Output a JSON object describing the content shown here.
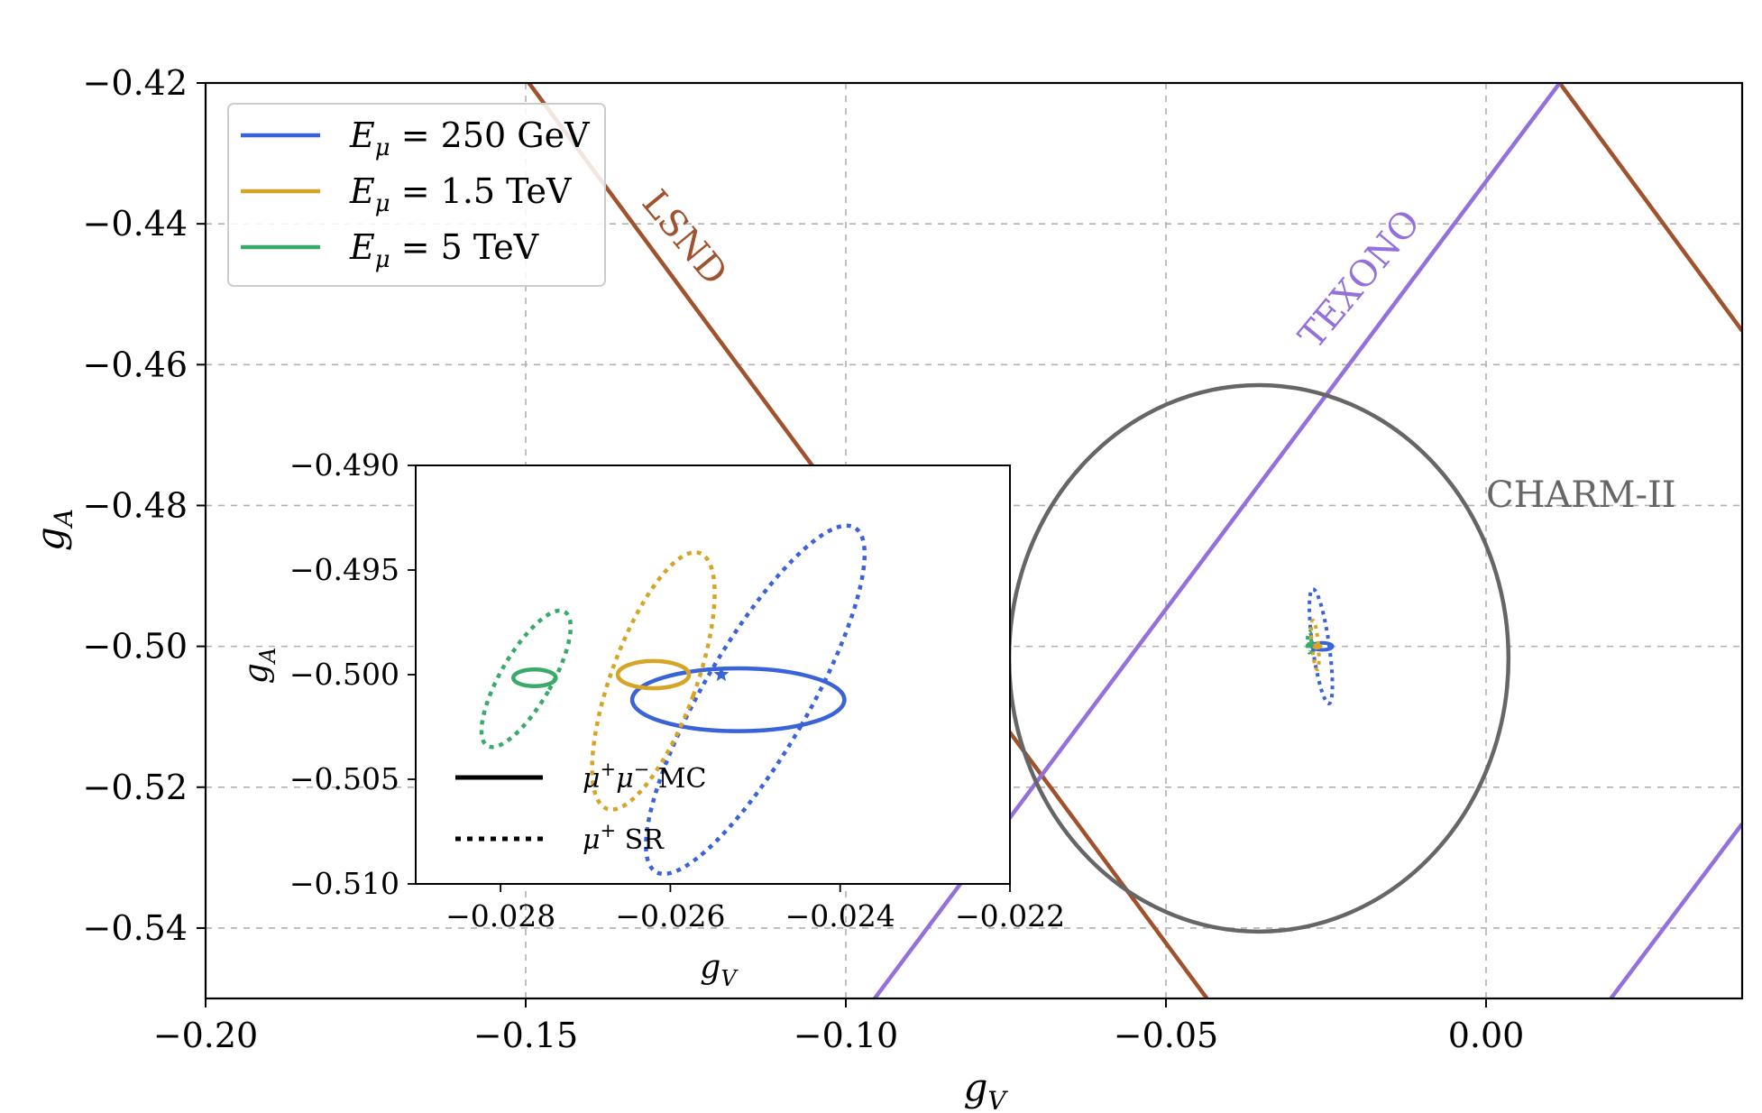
{
  "colors": {
    "e250": "#3a62d9",
    "e1500": "#d6a526",
    "e5000": "#3aaa6a",
    "lsnd": "#a0522d",
    "texono": "#9370db",
    "charm": "#666666"
  },
  "chart_data": {
    "type": "line",
    "main": {
      "xlabel": "g_V",
      "ylabel": "g_A",
      "xlim": [
        -0.2,
        0.04
      ],
      "ylim": [
        -0.55,
        -0.42
      ],
      "xticks": [
        -0.2,
        -0.15,
        -0.1,
        -0.05,
        0.0
      ],
      "xtick_labels": [
        "−0.20",
        "−0.15",
        "−0.10",
        "−0.05",
        "0.00"
      ],
      "yticks": [
        -0.42,
        -0.44,
        -0.46,
        -0.48,
        -0.5,
        -0.52,
        -0.54
      ],
      "ytick_labels": [
        "−0.42",
        "−0.44",
        "−0.46",
        "−0.48",
        "−0.50",
        "−0.52",
        "−0.54"
      ],
      "grid": true,
      "legend_position": "top-left",
      "legend": [
        {
          "key": "e250",
          "label": "E_μ = 250 GeV",
          "sym": "E",
          "sub": "μ",
          "rest": " = 250 GeV"
        },
        {
          "key": "e1500",
          "label": "E_μ = 1.5 TeV",
          "sym": "E",
          "sub": "μ",
          "rest": " = 1.5 TeV"
        },
        {
          "key": "e5000",
          "label": "E_μ = 5 TeV",
          "sym": "E",
          "sub": "μ",
          "rest": " = 5 TeV"
        }
      ],
      "annotations": {
        "lsnd": "LSND",
        "texono": "TEXONO",
        "charm": "CHARM-II"
      },
      "lsnd_lines": [
        {
          "x": [
            -0.1495,
            -0.0436
          ],
          "y": [
            -0.42,
            -0.55
          ]
        },
        {
          "x": [
            0.0115,
            0.04
          ],
          "y": [
            -0.42,
            -0.4552
          ]
        }
      ],
      "texono_lines": [
        {
          "x": [
            -0.0955,
            0.0115
          ],
          "y": [
            -0.55,
            -0.42
          ]
        },
        {
          "x": [
            0.0195,
            0.04
          ],
          "y": [
            -0.55,
            -0.5252
          ]
        }
      ],
      "charm_ellipse": {
        "cx": -0.0355,
        "cy": -0.5017,
        "rx": 0.039,
        "ry": 0.0388
      },
      "contours": [
        {
          "key": "e250",
          "style": "solid",
          "cx": -0.0256,
          "cy": -0.5,
          "rx": 0.0016,
          "ry": 0.0005,
          "angle": 0
        },
        {
          "key": "e250",
          "style": "dotted",
          "cx": -0.0258,
          "cy": -0.5,
          "rx": 0.0013,
          "ry": 0.0082,
          "angle": -8
        },
        {
          "key": "e1500",
          "style": "solid",
          "cx": -0.0264,
          "cy": -0.5,
          "rx": 0.0005,
          "ry": 0.0002,
          "angle": 0
        },
        {
          "key": "e1500",
          "style": "dotted",
          "cx": -0.0267,
          "cy": -0.4998,
          "rx": 0.0005,
          "ry": 0.0035,
          "angle": -5
        },
        {
          "key": "e5000",
          "style": "solid",
          "cx": -0.0275,
          "cy": -0.4998,
          "rx": 0.0003,
          "ry": 0.0002,
          "angle": 0
        },
        {
          "key": "e5000",
          "style": "dotted",
          "cx": -0.0276,
          "cy": -0.4994,
          "rx": 0.0003,
          "ry": 0.0015,
          "angle": 0
        }
      ]
    },
    "inset": {
      "xlabel": "g_V",
      "ylabel": "g_A",
      "xlim": [
        -0.029,
        -0.022
      ],
      "ylim": [
        -0.51,
        -0.49
      ],
      "xticks": [
        -0.028,
        -0.026,
        -0.024,
        -0.022
      ],
      "xtick_labels": [
        "−0.028",
        "−0.026",
        "−0.024",
        "−0.022"
      ],
      "yticks": [
        -0.49,
        -0.495,
        -0.5,
        -0.505,
        -0.51
      ],
      "ytick_labels": [
        "−0.490",
        "−0.495",
        "−0.500",
        "−0.505",
        "−0.510"
      ],
      "star": {
        "x": -0.0254,
        "y": -0.5
      },
      "legend": [
        {
          "style": "solid",
          "label": "μ⁺μ⁻ MC",
          "sym": "μ",
          "sup1": "+",
          "sym2": "μ",
          "sup2": "−",
          "rest": " MC"
        },
        {
          "style": "dotted",
          "label": "μ⁺ SR",
          "sym": "μ",
          "sup1": "+",
          "sym2": "",
          "sup2": "",
          "rest": " SR"
        }
      ],
      "contours": [
        {
          "key": "e250",
          "style": "solid",
          "cx": -0.0252,
          "cy": -0.5012,
          "rx": 0.00125,
          "ry": 0.0015,
          "angle": 0
        },
        {
          "key": "e250",
          "style": "dotted",
          "cx": -0.025,
          "cy": -0.5012,
          "rx": 0.00062,
          "ry": 0.0095,
          "angle": 30
        },
        {
          "key": "e1500",
          "style": "solid",
          "cx": -0.0262,
          "cy": -0.5,
          "rx": 0.00042,
          "ry": 0.00065,
          "angle": 0
        },
        {
          "key": "e1500",
          "style": "dotted",
          "cx": -0.0262,
          "cy": -0.5003,
          "rx": 0.0005,
          "ry": 0.0065,
          "angle": 20
        },
        {
          "key": "e5000",
          "style": "solid",
          "cx": -0.0276,
          "cy": -0.50015,
          "rx": 0.00025,
          "ry": 0.0004,
          "angle": 0
        },
        {
          "key": "e5000",
          "style": "dotted",
          "cx": -0.0277,
          "cy": -0.5002,
          "rx": 0.0003,
          "ry": 0.0037,
          "angle": 30
        }
      ]
    }
  }
}
